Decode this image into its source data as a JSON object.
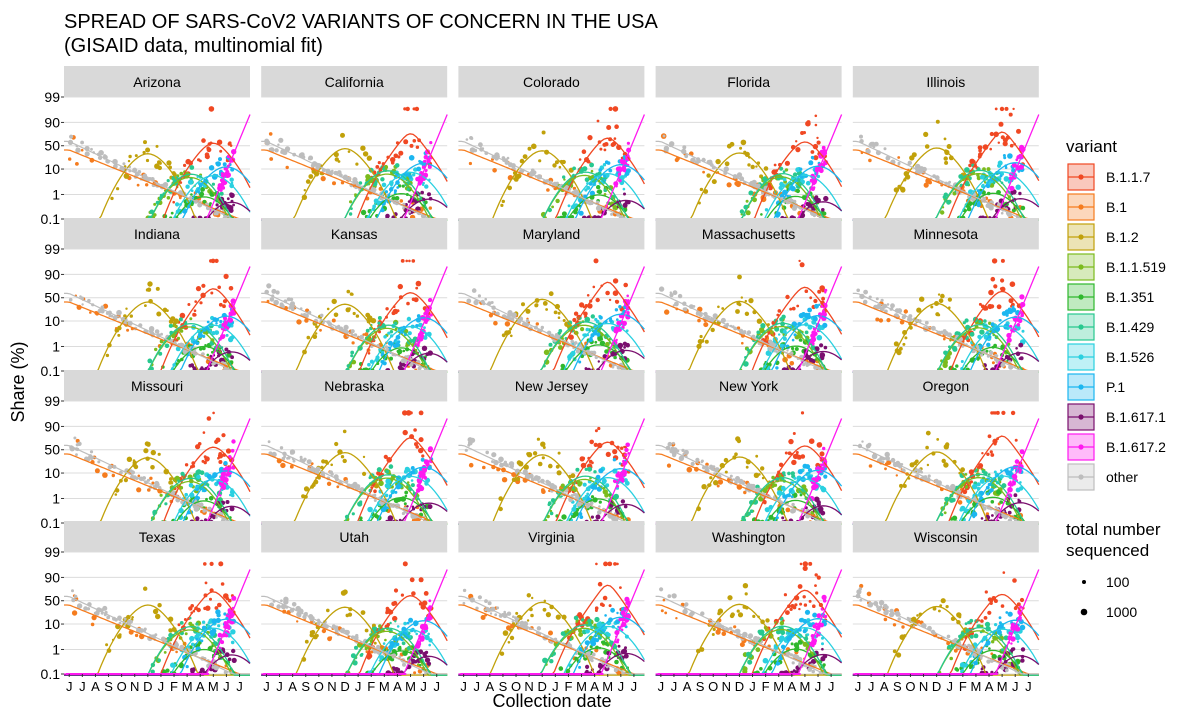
{
  "chart_data": {
    "type": "line",
    "title": "SPREAD OF SARS-CoV2 VARIANTS OF CONCERN IN THE USA",
    "subtitle": "(GISAID data, multinomial fit)",
    "xlabel": "Collection date",
    "ylabel": "Share (%)",
    "y_scale": "logit",
    "y_ticks": [
      0.1,
      1,
      10,
      50,
      90,
      99
    ],
    "y_tick_labels": [
      "0.1",
      "1",
      "10",
      "50",
      "90",
      "99"
    ],
    "x_tick_labels": [
      "J",
      "J",
      "A",
      "S",
      "O",
      "N",
      "D",
      "J",
      "F",
      "M",
      "A",
      "M",
      "J",
      "J"
    ],
    "x_months": [
      6,
      7,
      8,
      9,
      10,
      11,
      12,
      13,
      14,
      15,
      16,
      17,
      18,
      19
    ],
    "xlim": [
      5.6,
      19.8
    ],
    "facets": [
      "Arizona",
      "California",
      "Colorado",
      "Florida",
      "Illinois",
      "Indiana",
      "Kansas",
      "Maryland",
      "Massachusetts",
      "Minnesota",
      "Missouri",
      "Nebraska",
      "New Jersey",
      "New York",
      "Oregon",
      "Texas",
      "Utah",
      "Virginia",
      "Washington",
      "Wisconsin"
    ],
    "legend_variant": {
      "title": "variant",
      "items": [
        {
          "name": "B.1.1.7",
          "color": "#f04823"
        },
        {
          "name": "B.1",
          "color": "#f57c1e"
        },
        {
          "name": "B.1.2",
          "color": "#c1a10a"
        },
        {
          "name": "B.1.1.519",
          "color": "#7cbb1d"
        },
        {
          "name": "B.1.351",
          "color": "#2fb82d"
        },
        {
          "name": "B.1.429",
          "color": "#27c88f"
        },
        {
          "name": "B.1.526",
          "color": "#2ad0e0"
        },
        {
          "name": "P.1",
          "color": "#1bb6f0"
        },
        {
          "name": "B.1.617.1",
          "color": "#7a0f6e"
        },
        {
          "name": "B.1.617.2",
          "color": "#ff19f0"
        },
        {
          "name": "other",
          "color": "#bdbdbd"
        }
      ]
    },
    "legend_size": {
      "title_line1": "total number",
      "title_line2": "sequenced",
      "items": [
        {
          "label": "100",
          "value": 100
        },
        {
          "label": "1000",
          "value": 1000
        }
      ]
    },
    "series": [
      {
        "name": "B.1.1.7",
        "peak_month": 17.0,
        "peak_share": 70
      },
      {
        "name": "B.1",
        "start_month": 6.0,
        "start_share": 40,
        "end_month": 19.0,
        "end_share": 0.1
      },
      {
        "name": "B.1.2",
        "peak_month": 12.0,
        "peak_share": 40
      },
      {
        "name": "B.1.1.519",
        "peak_month": 15.2,
        "peak_share": 6
      },
      {
        "name": "B.1.351",
        "peak_month": 16.3,
        "peak_share": 1
      },
      {
        "name": "B.1.429",
        "peak_month": 15.3,
        "peak_share": 8
      },
      {
        "name": "B.1.526",
        "peak_month": 17.0,
        "peak_share": 7
      },
      {
        "name": "P.1",
        "peak_month": 18.0,
        "peak_share": 15
      },
      {
        "name": "B.1.617.1",
        "peak_month": 18.4,
        "peak_share": 0.6
      },
      {
        "name": "B.1.617.2",
        "start_month": 16.5,
        "start_share": 0.1,
        "end_month": 19.8,
        "end_share": 95
      },
      {
        "name": "other",
        "start_month": 6.0,
        "start_share": 60,
        "end_month": 18.5,
        "end_share": 0.1
      }
    ],
    "grid": true,
    "legend_position": "right"
  }
}
